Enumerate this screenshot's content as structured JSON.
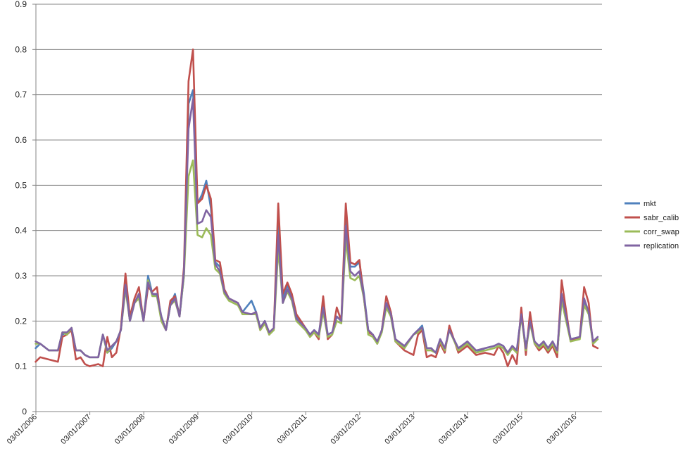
{
  "chart_data": {
    "type": "line",
    "title": "",
    "xlabel": "",
    "ylabel": "",
    "ylim": [
      0,
      0.9
    ],
    "yticks": [
      "0",
      "0.1",
      "0.2",
      "0.3",
      "0.4",
      "0.5",
      "0.6",
      "0.7",
      "0.8",
      "0.9"
    ],
    "xticks": [
      "03/01/2006",
      "03/01/2007",
      "03/01/2008",
      "03/01/2009",
      "03/01/2010",
      "03/01/2011",
      "03/01/2012",
      "03/01/2013",
      "03/01/2014",
      "03/01/2015",
      "03/01/2016"
    ],
    "xlim": [
      "2006-01-03",
      "2016-06-30"
    ],
    "grid": "horizontal",
    "legend_position": "right",
    "x": [
      "2006-01",
      "2006-02",
      "2006-04",
      "2006-06",
      "2006-07",
      "2006-08",
      "2006-09",
      "2006-10",
      "2006-11",
      "2006-12",
      "2007-01",
      "2007-03",
      "2007-04",
      "2007-05",
      "2007-06",
      "2007-07",
      "2007-08",
      "2007-09",
      "2007-10",
      "2007-11",
      "2007-12",
      "2008-01",
      "2008-02",
      "2008-03",
      "2008-04",
      "2008-05",
      "2008-06",
      "2008-07",
      "2008-08",
      "2008-09",
      "2008-10",
      "2008-11",
      "2008-12",
      "2009-01",
      "2009-02",
      "2009-03",
      "2009-04",
      "2009-05",
      "2009-06",
      "2009-07",
      "2009-08",
      "2009-10",
      "2009-11",
      "2010-01",
      "2010-02",
      "2010-03",
      "2010-04",
      "2010-05",
      "2010-06",
      "2010-07",
      "2010-08",
      "2010-09",
      "2010-10",
      "2010-11",
      "2011-01",
      "2011-02",
      "2011-03",
      "2011-04",
      "2011-05",
      "2011-06",
      "2011-07",
      "2011-08",
      "2011-09",
      "2011-10",
      "2011-11",
      "2011-12",
      "2012-01",
      "2012-02",
      "2012-03",
      "2012-04",
      "2012-05",
      "2012-06",
      "2012-07",
      "2012-08",
      "2012-09",
      "2012-11",
      "2013-01",
      "2013-02",
      "2013-03",
      "2013-04",
      "2013-05",
      "2013-06",
      "2013-07",
      "2013-08",
      "2013-09",
      "2013-11",
      "2014-01",
      "2014-03",
      "2014-05",
      "2014-07",
      "2014-08",
      "2014-09",
      "2014-10",
      "2014-11",
      "2014-12",
      "2015-01",
      "2015-02",
      "2015-03",
      "2015-04",
      "2015-05",
      "2015-06",
      "2015-07",
      "2015-08",
      "2015-09",
      "2015-10",
      "2015-12",
      "2016-02",
      "2016-03",
      "2016-04",
      "2016-05",
      "2016-06"
    ],
    "series": [
      {
        "name": "mkt",
        "color": "#4F81BD",
        "values": [
          0.14,
          0.15,
          0.135,
          0.135,
          0.17,
          0.175,
          0.18,
          0.135,
          0.135,
          0.125,
          0.12,
          0.12,
          0.17,
          0.13,
          0.14,
          0.155,
          0.18,
          0.28,
          0.2,
          0.24,
          0.255,
          0.2,
          0.3,
          0.26,
          0.255,
          0.21,
          0.18,
          0.235,
          0.26,
          0.21,
          0.3,
          0.68,
          0.71,
          0.46,
          0.48,
          0.51,
          0.45,
          0.33,
          0.32,
          0.27,
          0.25,
          0.24,
          0.22,
          0.245,
          0.22,
          0.185,
          0.2,
          0.17,
          0.185,
          0.41,
          0.25,
          0.28,
          0.25,
          0.21,
          0.185,
          0.17,
          0.18,
          0.17,
          0.24,
          0.17,
          0.175,
          0.21,
          0.2,
          0.43,
          0.32,
          0.32,
          0.33,
          0.26,
          0.18,
          0.17,
          0.15,
          0.18,
          0.24,
          0.22,
          0.16,
          0.14,
          0.17,
          0.18,
          0.19,
          0.14,
          0.14,
          0.13,
          0.16,
          0.14,
          0.18,
          0.14,
          0.15,
          0.13,
          0.14,
          0.145,
          0.15,
          0.145,
          0.13,
          0.145,
          0.13,
          0.22,
          0.14,
          0.2,
          0.15,
          0.14,
          0.155,
          0.14,
          0.155,
          0.13,
          0.25,
          0.16,
          0.165,
          0.24,
          0.22,
          0.15,
          0.16
        ]
      },
      {
        "name": "sabr_calib",
        "color": "#C0504D",
        "values": [
          0.11,
          0.12,
          0.115,
          0.11,
          0.165,
          0.17,
          0.18,
          0.115,
          0.12,
          0.105,
          0.1,
          0.105,
          0.1,
          0.165,
          0.12,
          0.13,
          0.185,
          0.305,
          0.21,
          0.25,
          0.275,
          0.2,
          0.275,
          0.265,
          0.275,
          0.2,
          0.18,
          0.245,
          0.255,
          0.21,
          0.32,
          0.73,
          0.8,
          0.46,
          0.47,
          0.5,
          0.47,
          0.335,
          0.33,
          0.27,
          0.25,
          0.24,
          0.215,
          0.215,
          0.22,
          0.18,
          0.195,
          0.17,
          0.185,
          0.46,
          0.26,
          0.285,
          0.26,
          0.215,
          0.185,
          0.165,
          0.175,
          0.16,
          0.255,
          0.16,
          0.17,
          0.23,
          0.2,
          0.46,
          0.33,
          0.325,
          0.335,
          0.25,
          0.175,
          0.17,
          0.15,
          0.18,
          0.255,
          0.22,
          0.155,
          0.135,
          0.125,
          0.17,
          0.18,
          0.12,
          0.125,
          0.12,
          0.15,
          0.13,
          0.19,
          0.13,
          0.145,
          0.125,
          0.13,
          0.125,
          0.145,
          0.13,
          0.1,
          0.125,
          0.105,
          0.23,
          0.125,
          0.22,
          0.15,
          0.135,
          0.145,
          0.13,
          0.145,
          0.12,
          0.29,
          0.155,
          0.165,
          0.275,
          0.24,
          0.145,
          0.14
        ]
      },
      {
        "name": "corr_swap",
        "color": "#9BBB59",
        "values": [
          0.15,
          0.15,
          0.135,
          0.135,
          0.175,
          0.17,
          0.185,
          0.135,
          0.135,
          0.125,
          0.12,
          0.12,
          0.17,
          0.13,
          0.145,
          0.155,
          0.18,
          0.27,
          0.2,
          0.24,
          0.25,
          0.2,
          0.29,
          0.255,
          0.255,
          0.2,
          0.18,
          0.235,
          0.245,
          0.21,
          0.3,
          0.52,
          0.555,
          0.39,
          0.385,
          0.405,
          0.39,
          0.315,
          0.305,
          0.26,
          0.245,
          0.235,
          0.215,
          0.215,
          0.215,
          0.18,
          0.195,
          0.17,
          0.18,
          0.36,
          0.24,
          0.265,
          0.245,
          0.2,
          0.18,
          0.165,
          0.175,
          0.165,
          0.22,
          0.165,
          0.17,
          0.2,
          0.195,
          0.38,
          0.295,
          0.29,
          0.3,
          0.25,
          0.17,
          0.165,
          0.15,
          0.175,
          0.23,
          0.21,
          0.155,
          0.14,
          0.17,
          0.175,
          0.185,
          0.135,
          0.135,
          0.13,
          0.155,
          0.135,
          0.18,
          0.135,
          0.15,
          0.13,
          0.135,
          0.14,
          0.145,
          0.14,
          0.125,
          0.14,
          0.13,
          0.21,
          0.135,
          0.195,
          0.15,
          0.14,
          0.15,
          0.135,
          0.15,
          0.13,
          0.245,
          0.155,
          0.16,
          0.235,
          0.215,
          0.15,
          0.16
        ]
      },
      {
        "name": "replication",
        "color": "#8064A2",
        "values": [
          0.155,
          0.15,
          0.135,
          0.135,
          0.175,
          0.175,
          0.185,
          0.135,
          0.135,
          0.125,
          0.12,
          0.12,
          0.17,
          0.135,
          0.145,
          0.155,
          0.18,
          0.28,
          0.2,
          0.24,
          0.26,
          0.2,
          0.285,
          0.26,
          0.26,
          0.21,
          0.18,
          0.235,
          0.25,
          0.21,
          0.31,
          0.625,
          0.69,
          0.415,
          0.42,
          0.445,
          0.43,
          0.325,
          0.31,
          0.265,
          0.25,
          0.24,
          0.22,
          0.215,
          0.22,
          0.185,
          0.2,
          0.175,
          0.185,
          0.39,
          0.24,
          0.27,
          0.25,
          0.205,
          0.185,
          0.17,
          0.18,
          0.17,
          0.23,
          0.17,
          0.175,
          0.21,
          0.2,
          0.41,
          0.31,
          0.3,
          0.31,
          0.255,
          0.18,
          0.17,
          0.155,
          0.18,
          0.24,
          0.215,
          0.16,
          0.145,
          0.17,
          0.18,
          0.185,
          0.14,
          0.14,
          0.13,
          0.16,
          0.14,
          0.18,
          0.14,
          0.155,
          0.135,
          0.14,
          0.145,
          0.15,
          0.145,
          0.13,
          0.145,
          0.135,
          0.215,
          0.14,
          0.2,
          0.155,
          0.145,
          0.155,
          0.14,
          0.155,
          0.135,
          0.26,
          0.16,
          0.165,
          0.25,
          0.22,
          0.155,
          0.165
        ]
      }
    ]
  }
}
